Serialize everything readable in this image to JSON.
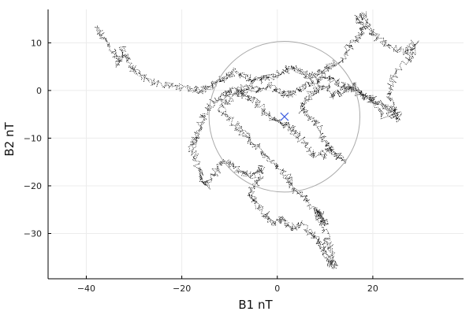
{
  "chart_data": {
    "type": "scatter",
    "title": "",
    "xlabel": "B1 nT",
    "ylabel": "B2 nT",
    "xlim": [
      -48,
      39
    ],
    "ylim": [
      -39.5,
      17
    ],
    "grid": true,
    "legend": "none",
    "x_ticks": [
      -40,
      -20,
      0,
      20
    ],
    "y_ticks": [
      -30,
      -20,
      -10,
      0,
      10
    ],
    "x_tick_labels": [
      "−40",
      "−20",
      "0",
      "20"
    ],
    "y_tick_labels": [
      "−30",
      "−20",
      "−10",
      "0",
      "10"
    ],
    "trace_color": "#000000",
    "circle_color": "#aaaaaa",
    "marker_color": "#4060e0",
    "circle": {
      "center": [
        1.5,
        -5.5
      ],
      "radius": 15.8
    },
    "center_marker": {
      "x": 1.5,
      "y": -5.5,
      "symbol": "x"
    },
    "series": [
      {
        "path": [
          [
            -38,
            13
          ],
          [
            -36.5,
            11
          ],
          [
            -34,
            8
          ],
          [
            -33,
            5
          ],
          [
            -32.5,
            9
          ],
          [
            -31,
            6
          ],
          [
            -30,
            4
          ],
          [
            -27,
            2
          ],
          [
            -23,
            1
          ],
          [
            -19,
            0.5
          ],
          [
            -16,
            0
          ],
          [
            -14,
            1
          ],
          [
            -12,
            2
          ],
          [
            -11,
            3
          ],
          [
            -9,
            4
          ],
          [
            -7,
            3
          ],
          [
            -5,
            2
          ],
          [
            -3,
            2.5
          ],
          [
            -1,
            3
          ],
          [
            1,
            4
          ],
          [
            3,
            5
          ],
          [
            5,
            4
          ],
          [
            7,
            3
          ],
          [
            9,
            4
          ],
          [
            11,
            5
          ],
          [
            13,
            6
          ],
          [
            15,
            9
          ],
          [
            17,
            11
          ],
          [
            18,
            13
          ],
          [
            17,
            15
          ],
          [
            18,
            16
          ],
          [
            19,
            13
          ],
          [
            21,
            11
          ],
          [
            24,
            9
          ],
          [
            27,
            8
          ],
          [
            29,
            10
          ],
          [
            28,
            7
          ],
          [
            25,
            4
          ],
          [
            23,
            0
          ],
          [
            24,
            -3
          ],
          [
            25,
            -6
          ],
          [
            22,
            -5
          ],
          [
            20,
            -2
          ],
          [
            18,
            -1
          ],
          [
            16,
            1
          ],
          [
            14,
            0
          ],
          [
            12,
            -1
          ],
          [
            10,
            1
          ],
          [
            8,
            0
          ],
          [
            6,
            -2
          ],
          [
            5,
            -4
          ],
          [
            7,
            -6
          ],
          [
            9,
            -8
          ],
          [
            10,
            -11
          ],
          [
            12,
            -13
          ],
          [
            14,
            -15
          ],
          [
            11,
            -12
          ],
          [
            9,
            -14
          ],
          [
            7,
            -13
          ],
          [
            5,
            -10
          ],
          [
            3,
            -8
          ],
          [
            1,
            -7
          ],
          [
            -1,
            -6
          ],
          [
            -3,
            -4
          ],
          [
            -5,
            -2
          ],
          [
            -7,
            -1
          ],
          [
            -9,
            0
          ],
          [
            -11,
            -1
          ],
          [
            -13,
            -2
          ],
          [
            -15,
            -4
          ],
          [
            -16,
            -7
          ],
          [
            -17,
            -10
          ],
          [
            -18,
            -12
          ],
          [
            -17,
            -15
          ],
          [
            -16,
            -18
          ],
          [
            -15,
            -20
          ],
          [
            -13,
            -17
          ],
          [
            -11,
            -15
          ],
          [
            -9,
            -16
          ],
          [
            -7,
            -17
          ],
          [
            -5,
            -18
          ],
          [
            -3,
            -16
          ],
          [
            -4,
            -19
          ],
          [
            -6,
            -21
          ],
          [
            -5,
            -23
          ],
          [
            -3,
            -25
          ],
          [
            -1,
            -28
          ],
          [
            1,
            -27
          ],
          [
            3,
            -29
          ],
          [
            5,
            -28
          ],
          [
            7,
            -30
          ],
          [
            9,
            -32
          ],
          [
            10,
            -34
          ],
          [
            11,
            -36
          ],
          [
            12,
            -37
          ],
          [
            11,
            -33
          ],
          [
            10,
            -30
          ],
          [
            9,
            -27
          ],
          [
            8,
            -25
          ],
          [
            9,
            -26
          ],
          [
            10,
            -28
          ],
          [
            7,
            -24
          ],
          [
            5,
            -22
          ],
          [
            3,
            -20
          ],
          [
            2,
            -18
          ],
          [
            0,
            -16
          ],
          [
            -2,
            -14
          ],
          [
            -4,
            -12
          ],
          [
            -6,
            -10
          ],
          [
            -8,
            -8
          ],
          [
            -10,
            -6
          ],
          [
            -12,
            -4
          ],
          [
            -10,
            -2
          ],
          [
            -8,
            0
          ],
          [
            -6,
            1
          ],
          [
            -4,
            0
          ],
          [
            -2,
            1
          ],
          [
            0,
            0
          ],
          [
            2,
            -1
          ],
          [
            4,
            0
          ],
          [
            6,
            1
          ],
          [
            8,
            2
          ],
          [
            10,
            3
          ],
          [
            12,
            2
          ],
          [
            14,
            1
          ],
          [
            16,
            0
          ],
          [
            18,
            -1
          ],
          [
            20,
            -2
          ],
          [
            22,
            -3
          ],
          [
            24,
            -4
          ],
          [
            26,
            -6
          ]
        ]
      }
    ]
  }
}
